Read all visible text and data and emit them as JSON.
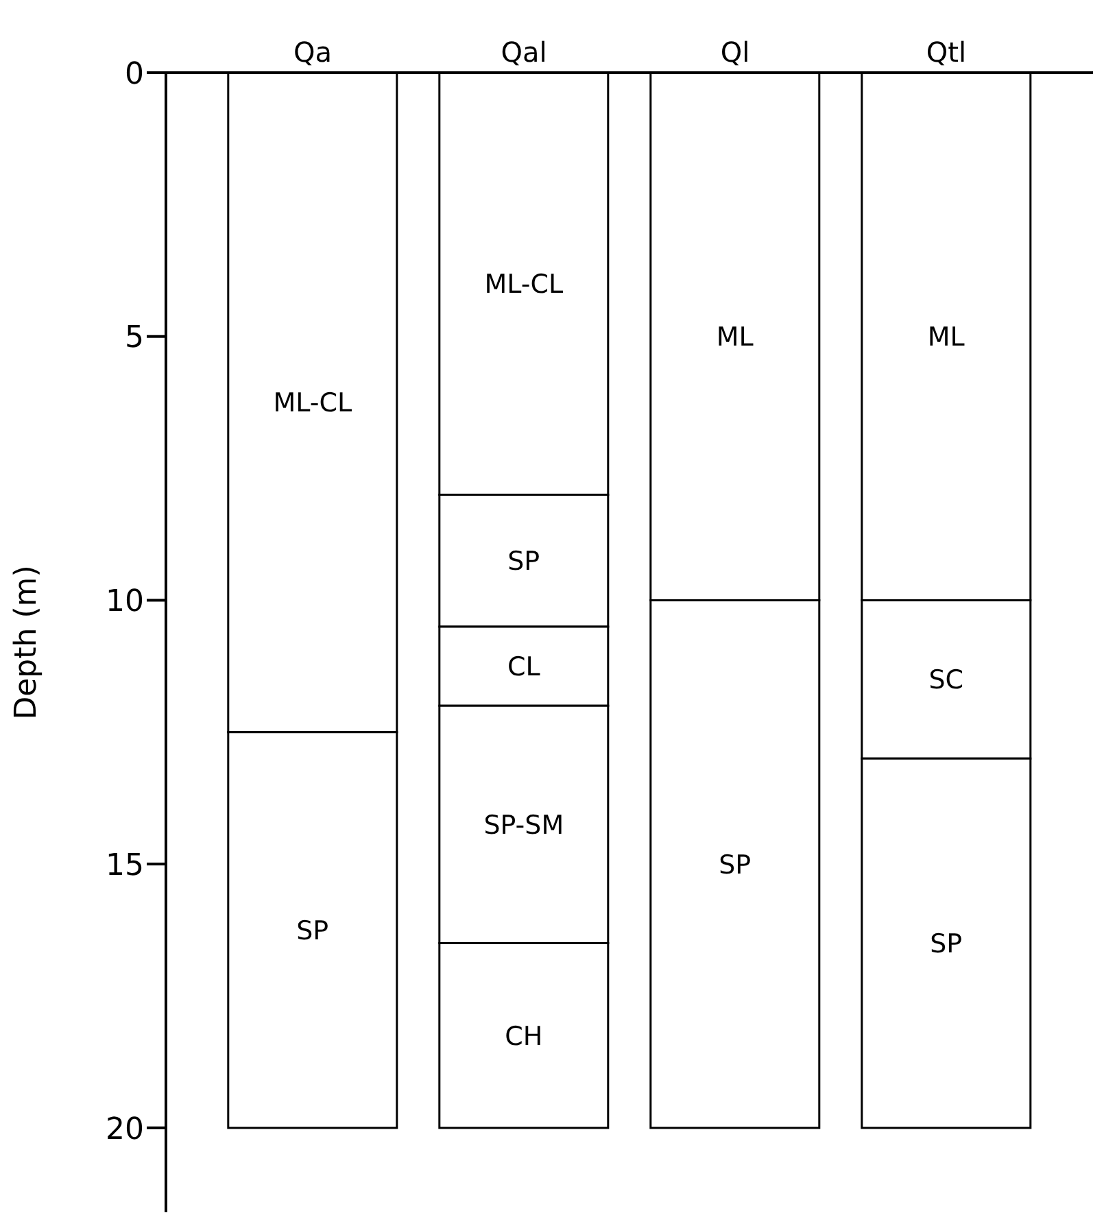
{
  "chart_data": {
    "type": "bar",
    "stacked": true,
    "categories": [
      "Qa",
      "Qal",
      "Ql",
      "Qtl"
    ],
    "ylabel": "Depth (m)",
    "ylim": [
      21.6,
      0
    ],
    "yticks": [
      0,
      5,
      10,
      15,
      20
    ],
    "grid": false,
    "legend": false,
    "series": [
      {
        "color": "#ffffff",
        "values": [
          12.5,
          8,
          10,
          10
        ],
        "value_labels": [
          "ML-CL",
          "ML-CL",
          "ML",
          "ML"
        ]
      },
      {
        "color": "#ffffff",
        "values": [
          7.5,
          2.5,
          10,
          3
        ],
        "value_labels": [
          "SP",
          "SP",
          "SP",
          "SC"
        ]
      },
      {
        "color": "#ffffff",
        "values": [
          null,
          1.5,
          null,
          7
        ],
        "value_labels": [
          null,
          "CL",
          null,
          "SP"
        ]
      },
      {
        "color": "#ffffff",
        "values": [
          null,
          4.5,
          null,
          null
        ],
        "value_labels": [
          null,
          "SP-SM",
          null,
          null
        ]
      },
      {
        "color": "#ffffff",
        "values": [
          null,
          3.5,
          null,
          null
        ],
        "value_labels": [
          null,
          "CH",
          null,
          null
        ]
      }
    ]
  }
}
